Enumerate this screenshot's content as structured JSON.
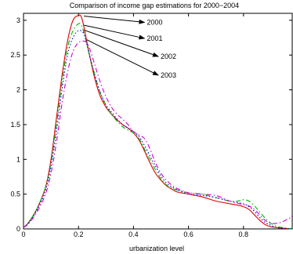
{
  "chart_data": {
    "type": "line",
    "title": "Comparison of income gap estimations for 2000−2004",
    "xlabel": "urbanization level",
    "ylabel": "",
    "xlim": [
      0,
      0.98
    ],
    "ylim": [
      0,
      3.1
    ],
    "grid": false,
    "xticks": [
      "0",
      "0.2",
      "0.4",
      "0.6",
      "0.8"
    ],
    "yticks": [
      "0",
      "0.5",
      "1",
      "1.5",
      "2",
      "2.5",
      "3"
    ],
    "series": [
      {
        "name": "2000",
        "color": "#e00000",
        "dash": "",
        "x": [
          0,
          0.02,
          0.05,
          0.08,
          0.1,
          0.12,
          0.14,
          0.16,
          0.18,
          0.2,
          0.21,
          0.22,
          0.24,
          0.26,
          0.28,
          0.3,
          0.32,
          0.34,
          0.36,
          0.38,
          0.4,
          0.42,
          0.44,
          0.46,
          0.48,
          0.5,
          0.52,
          0.54,
          0.56,
          0.6,
          0.65,
          0.7,
          0.74,
          0.78,
          0.8,
          0.82,
          0.84,
          0.86,
          0.88,
          0.9,
          0.92,
          0.94,
          0.96,
          0.98
        ],
        "y": [
          0.02,
          0.1,
          0.3,
          0.6,
          1.0,
          1.6,
          2.2,
          2.7,
          3.0,
          3.07,
          3.05,
          2.9,
          2.5,
          2.15,
          1.9,
          1.75,
          1.65,
          1.57,
          1.5,
          1.45,
          1.38,
          1.28,
          1.12,
          0.95,
          0.8,
          0.7,
          0.62,
          0.57,
          0.53,
          0.5,
          0.46,
          0.4,
          0.37,
          0.34,
          0.32,
          0.28,
          0.2,
          0.12,
          0.06,
          0.03,
          0.02,
          0.01,
          0.005,
          0.0
        ]
      },
      {
        "name": "2001",
        "color": "#00b000",
        "dash": "6,3,1.5,3",
        "x": [
          0,
          0.02,
          0.05,
          0.08,
          0.1,
          0.12,
          0.14,
          0.16,
          0.18,
          0.2,
          0.21,
          0.22,
          0.24,
          0.26,
          0.28,
          0.3,
          0.32,
          0.34,
          0.36,
          0.38,
          0.4,
          0.42,
          0.44,
          0.46,
          0.48,
          0.5,
          0.52,
          0.55,
          0.6,
          0.65,
          0.7,
          0.75,
          0.78,
          0.8,
          0.82,
          0.84,
          0.86,
          0.88,
          0.9,
          0.92,
          0.94,
          0.96,
          0.98
        ],
        "y": [
          0.02,
          0.1,
          0.3,
          0.6,
          0.95,
          1.5,
          2.1,
          2.6,
          2.85,
          2.95,
          2.93,
          2.82,
          2.5,
          2.2,
          1.95,
          1.78,
          1.65,
          1.55,
          1.47,
          1.42,
          1.38,
          1.3,
          1.15,
          1.0,
          0.85,
          0.72,
          0.63,
          0.57,
          0.52,
          0.5,
          0.45,
          0.4,
          0.4,
          0.42,
          0.4,
          0.33,
          0.24,
          0.15,
          0.08,
          0.04,
          0.02,
          0.01,
          0.0
        ]
      },
      {
        "name": "2002",
        "color": "#0000e0",
        "dash": "1.5,2.5",
        "x": [
          0,
          0.02,
          0.05,
          0.08,
          0.1,
          0.12,
          0.14,
          0.16,
          0.18,
          0.2,
          0.22,
          0.24,
          0.26,
          0.28,
          0.3,
          0.32,
          0.34,
          0.36,
          0.38,
          0.4,
          0.42,
          0.44,
          0.46,
          0.48,
          0.5,
          0.52,
          0.55,
          0.6,
          0.65,
          0.7,
          0.75,
          0.8,
          0.82,
          0.84,
          0.86,
          0.88,
          0.9,
          0.92,
          0.94,
          0.96,
          0.98
        ],
        "y": [
          0.02,
          0.09,
          0.28,
          0.55,
          0.9,
          1.4,
          2.0,
          2.5,
          2.75,
          2.85,
          2.8,
          2.5,
          2.2,
          1.95,
          1.78,
          1.68,
          1.58,
          1.5,
          1.45,
          1.4,
          1.33,
          1.2,
          1.05,
          0.9,
          0.76,
          0.66,
          0.58,
          0.5,
          0.48,
          0.45,
          0.4,
          0.36,
          0.32,
          0.25,
          0.16,
          0.09,
          0.05,
          0.02,
          0.01,
          0.005,
          0.0
        ]
      },
      {
        "name": "2003",
        "color": "#d000d0",
        "dash": "6,3,1.5,3",
        "x": [
          0,
          0.02,
          0.05,
          0.08,
          0.1,
          0.12,
          0.14,
          0.16,
          0.18,
          0.2,
          0.22,
          0.23,
          0.24,
          0.26,
          0.28,
          0.3,
          0.32,
          0.34,
          0.36,
          0.38,
          0.4,
          0.42,
          0.44,
          0.46,
          0.48,
          0.5,
          0.52,
          0.55,
          0.6,
          0.65,
          0.7,
          0.75,
          0.8,
          0.82,
          0.84,
          0.86,
          0.88,
          0.9,
          0.92,
          0.94,
          0.96,
          0.98
        ],
        "y": [
          0.02,
          0.08,
          0.25,
          0.5,
          0.8,
          1.25,
          1.8,
          2.25,
          2.55,
          2.68,
          2.7,
          2.68,
          2.6,
          2.35,
          2.1,
          1.9,
          1.75,
          1.65,
          1.58,
          1.5,
          1.4,
          1.35,
          1.3,
          1.15,
          0.95,
          0.8,
          0.7,
          0.6,
          0.52,
          0.5,
          0.48,
          0.4,
          0.35,
          0.33,
          0.28,
          0.2,
          0.12,
          0.08,
          0.08,
          0.1,
          0.14,
          0.18
        ]
      }
    ],
    "annotations": [
      {
        "text": "2000",
        "from": [
          0.22,
          3.06
        ],
        "to": [
          0.44,
          2.97
        ]
      },
      {
        "text": "2001",
        "from": [
          0.22,
          2.93
        ],
        "to": [
          0.44,
          2.74
        ]
      },
      {
        "text": "2002",
        "from": [
          0.22,
          2.86
        ],
        "to": [
          0.49,
          2.48
        ]
      },
      {
        "text": "2003",
        "from": [
          0.23,
          2.72
        ],
        "to": [
          0.49,
          2.21
        ]
      }
    ]
  }
}
